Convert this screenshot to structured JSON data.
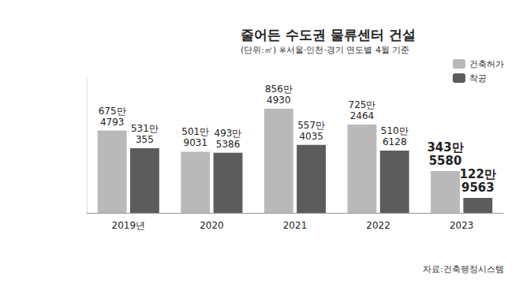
{
  "chart_data": {
    "type": "bar",
    "title": "줄어든 수도권 물류센터 건설",
    "subtitle": "(단위:㎡) ※서울·인천·경기 연도별 4월 기준",
    "source": "자료:건축행정시스템",
    "categories": [
      "2019년",
      "2020",
      "2021",
      "2022",
      "2023"
    ],
    "series": [
      {
        "name": "건축허가",
        "color": "#b9b9b9",
        "values": [
          6754793,
          5019031,
          8564930,
          7252464,
          3435580
        ],
        "value_labels": [
          "675만 4793",
          "501만 9031",
          "856만 4930",
          "725만 2464",
          "343만 5580"
        ]
      },
      {
        "name": "착공",
        "color": "#5c5c5c",
        "values": [
          5310355,
          4935386,
          5574035,
          5106128,
          1229563
        ],
        "value_labels": [
          "531만 355",
          "493만 5386",
          "557만 4035",
          "510만 6128",
          "122만 9563"
        ]
      }
    ],
    "ylim": [
      0,
      11000000
    ],
    "yticks": [],
    "grid": false,
    "legend": "top-right",
    "data_labels": true,
    "tick_labels": "x"
  }
}
